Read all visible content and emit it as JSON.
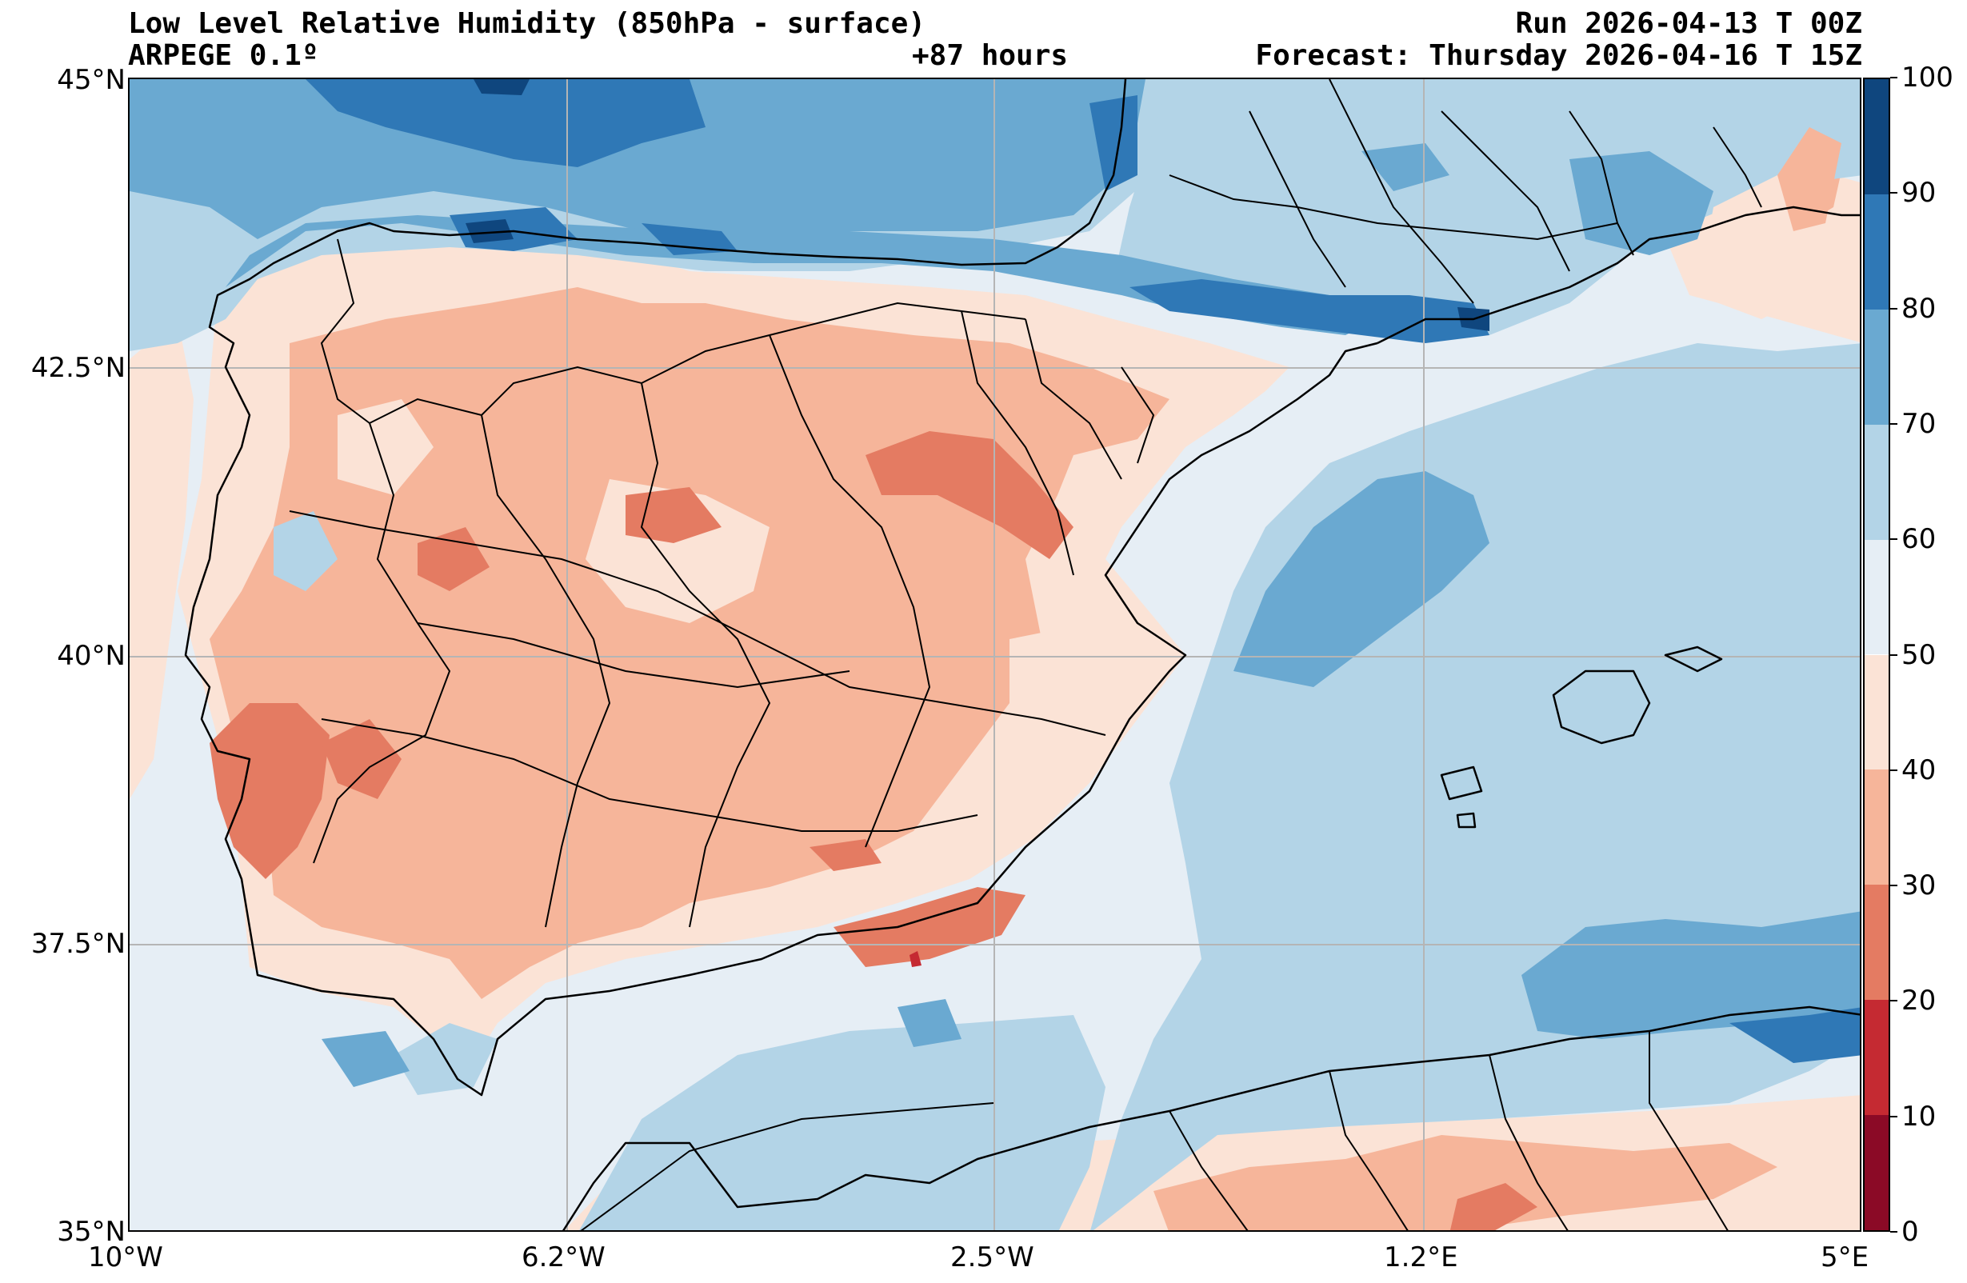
{
  "header": {
    "title": "Low Level Relative Humidity (850hPa - surface)",
    "model": "ARPEGE 0.1º",
    "run": "Run 2026-04-13 T 00Z",
    "lead": "+87 hours",
    "forecast": "Forecast: Thursday 2026-04-16 T 15Z"
  },
  "axes": {
    "y_labels": [
      "45°N",
      "42.5°N",
      "40°N",
      "37.5°N",
      "35°N"
    ],
    "x_labels": [
      "10°W",
      "6.2°W",
      "2.5°W",
      "1.2°E",
      "5°E"
    ]
  },
  "colorbar": {
    "levels": [
      "0",
      "10",
      "20",
      "30",
      "40",
      "50",
      "60",
      "70",
      "80",
      "90",
      "100"
    ],
    "colors": [
      "#8b0a26",
      "#c52a32",
      "#e47b62",
      "#f6b59a",
      "#fbe3d6",
      "#e6eef5",
      "#b3d4e7",
      "#6aa9d1",
      "#2f78b6",
      "#0f467e"
    ]
  },
  "map_data": {
    "lon_range": [
      -10,
      5
    ],
    "lat_range": [
      35,
      45
    ],
    "background_level": "50-60",
    "regions": [
      {
        "name": "iberian-interior-30-40",
        "level": "30-40"
      },
      {
        "name": "north-atlantic-70-80",
        "level": "70-80"
      },
      {
        "name": "bay-of-biscay-80-90",
        "level": "80-90"
      },
      {
        "name": "balearic-sea-70-80",
        "level": "70-80"
      },
      {
        "name": "alboran-60-70",
        "level": "60-70"
      },
      {
        "name": "pyrenees-80-90",
        "level": "80-90"
      },
      {
        "name": "lisbon-20-30",
        "level": "20-30"
      },
      {
        "name": "granada-10-20",
        "level": "10-20"
      }
    ]
  }
}
